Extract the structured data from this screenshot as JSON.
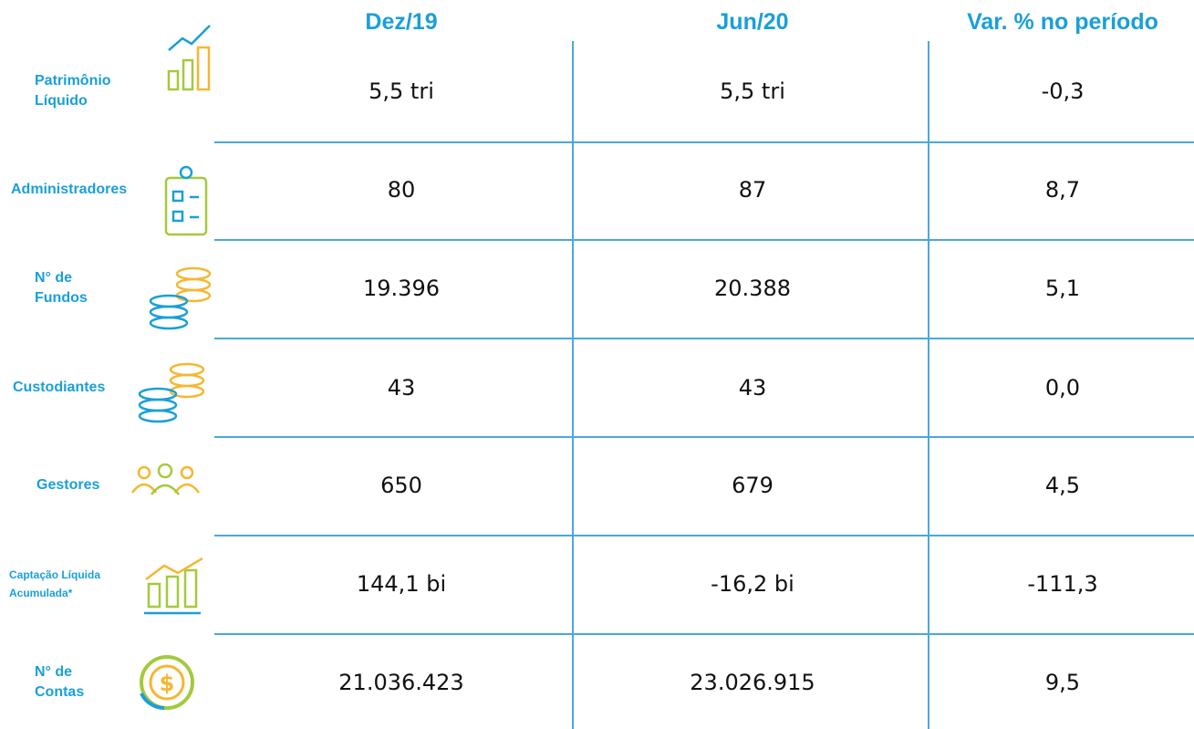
{
  "table": {
    "headers": [
      "Dez/19",
      "Jun/20",
      "Var. % no período"
    ],
    "rows": [
      {
        "label": "Patrimônio Líquido",
        "values": [
          "5,5 tri",
          "5,5 tri",
          "-0,3"
        ]
      },
      {
        "label": "Administradores",
        "values": [
          "80",
          "87",
          "8,7"
        ]
      },
      {
        "label": "N° de Fundos",
        "values": [
          "19.396",
          "20.388",
          "5,1"
        ]
      },
      {
        "label": "Custodiantes",
        "values": [
          "43",
          "43",
          "0,0"
        ]
      },
      {
        "label": "Gestores",
        "values": [
          "650",
          "679",
          "4,5"
        ]
      },
      {
        "label": "Captação Líquida Acumulada*",
        "values": [
          "144,1 bi",
          "-16,2 bi",
          "-111,3"
        ]
      },
      {
        "label": "N° de Contas",
        "values": [
          "21.036.423",
          "23.026.915",
          "9,5"
        ]
      }
    ]
  }
}
